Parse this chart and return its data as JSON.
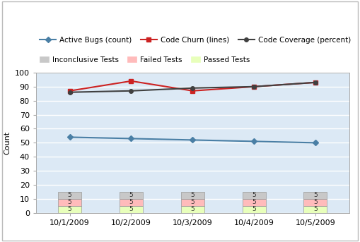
{
  "x_labels": [
    "10/1/2009",
    "10/2/2009",
    "10/3/2009",
    "10/4/2009",
    "10/5/2009"
  ],
  "x_positions": [
    0,
    1,
    2,
    3,
    4
  ],
  "active_bugs": [
    54,
    53,
    52,
    51,
    50
  ],
  "code_churn": [
    87,
    94,
    87,
    90,
    93
  ],
  "code_coverage": [
    86,
    87,
    89,
    90,
    93
  ],
  "inconclusive": [
    5,
    5,
    5,
    5,
    5
  ],
  "failed": [
    5,
    5,
    5,
    5,
    5
  ],
  "passed": [
    5,
    5,
    5,
    5,
    5
  ],
  "active_bugs_color": "#4a7fa5",
  "code_churn_color": "#cc2222",
  "code_coverage_color": "#404040",
  "inconclusive_color": "#c8c8c8",
  "failed_color": "#ffbbbb",
  "passed_color": "#e8ffbb",
  "bg_color": "#dce9f5",
  "fig_bg_color": "#ffffff",
  "ylabel": "Count",
  "ylim": [
    0,
    100
  ],
  "bar_width": 0.38
}
